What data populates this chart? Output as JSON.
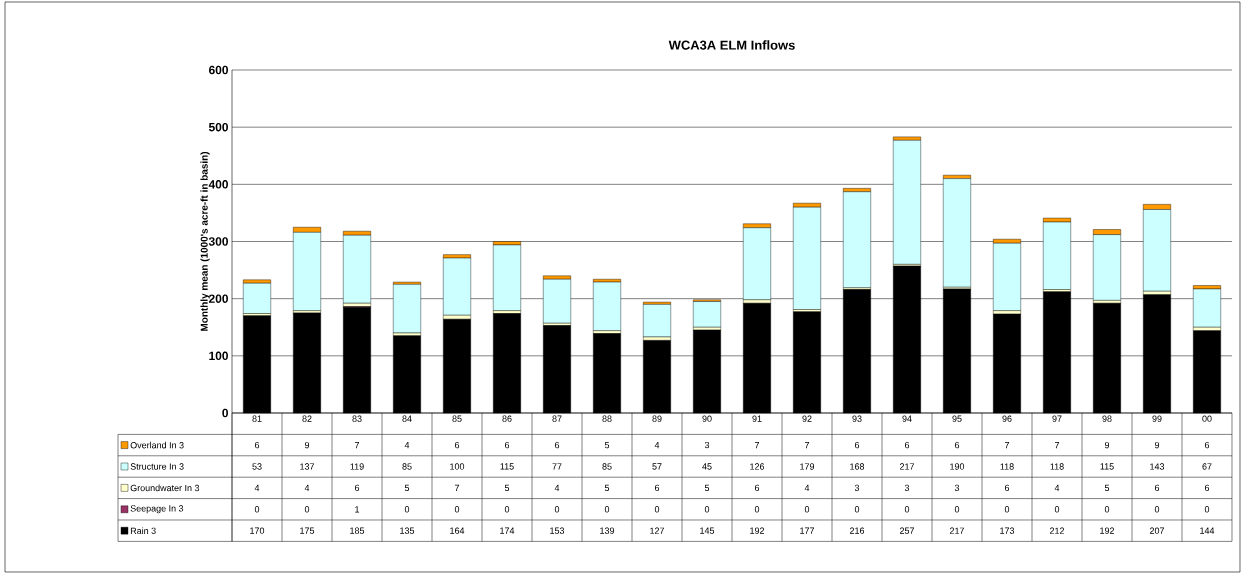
{
  "chart_data": {
    "type": "bar",
    "stacked": true,
    "title": "WCA3A ELM Inflows",
    "ylabel": "Monthly mean (1000's acre-ft in basin)",
    "categories": [
      "81",
      "82",
      "83",
      "84",
      "85",
      "86",
      "87",
      "88",
      "89",
      "90",
      "91",
      "92",
      "93",
      "94",
      "95",
      "96",
      "97",
      "98",
      "99",
      "00"
    ],
    "series": [
      {
        "name": "Rain  3",
        "color": "#000000",
        "values": [
          170,
          175,
          185,
          135,
          164,
          174,
          153,
          139,
          127,
          145,
          192,
          177,
          216,
          257,
          217,
          173,
          212,
          192,
          207,
          144
        ]
      },
      {
        "name": "Seepage In  3",
        "color": "#993366",
        "values": [
          0,
          0,
          1,
          0,
          0,
          0,
          0,
          0,
          0,
          0,
          0,
          0,
          0,
          0,
          0,
          0,
          0,
          0,
          0,
          0
        ]
      },
      {
        "name": "Groundwater In  3",
        "color": "#ffffcc",
        "values": [
          4,
          4,
          6,
          5,
          7,
          5,
          4,
          5,
          6,
          5,
          6,
          4,
          3,
          3,
          3,
          6,
          4,
          5,
          6,
          6
        ]
      },
      {
        "name": "Structure In  3",
        "color": "#ccffff",
        "values": [
          53,
          137,
          119,
          85,
          100,
          115,
          77,
          85,
          57,
          45,
          126,
          179,
          168,
          217,
          190,
          118,
          118,
          115,
          143,
          67
        ]
      },
      {
        "name": "Overland In  3",
        "color": "#ff9900",
        "values": [
          6,
          9,
          7,
          4,
          6,
          6,
          6,
          5,
          4,
          3,
          7,
          7,
          6,
          6,
          6,
          7,
          7,
          9,
          9,
          6
        ]
      }
    ],
    "ylim": [
      0,
      600
    ],
    "yticks": [
      0,
      100,
      200,
      300,
      400,
      500,
      600
    ],
    "grid": "y",
    "legend": "bottom left",
    "data_labels": true
  }
}
